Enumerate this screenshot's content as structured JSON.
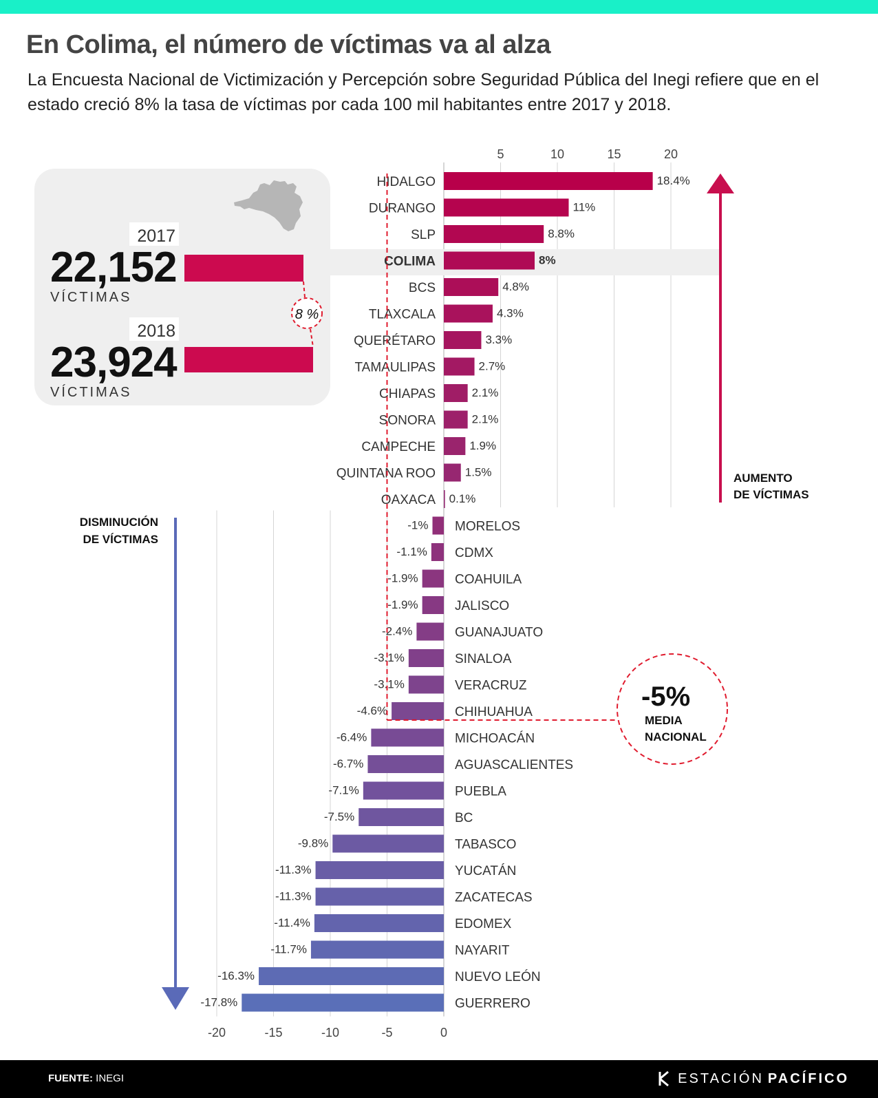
{
  "header": {
    "title": "En Colima, el número de víctimas va al alza",
    "subtitle": "La Encuesta Nacional de Victimización y Percepción sobre Seguridad Pública del Inegi refiere que en el estado creció 8% la tasa de víctimas por cada 100 mil habitantes entre 2017 y 2018."
  },
  "colima_card": {
    "year_2017": "2017",
    "value_2017": "22,152",
    "unit_2017": "VÍCTIMAS",
    "year_2018": "2018",
    "value_2018": "23,924",
    "unit_2018": "VÍCTIMAS",
    "growth_label": "8 %"
  },
  "chart_data": {
    "type": "bar",
    "orientation": "horizontal",
    "highlight": "COLIMA",
    "categories": [
      "HIDALGO",
      "DURANGO",
      "SLP",
      "COLIMA",
      "BCS",
      "TLAXCALA",
      "QUERÉTARO",
      "TAMAULIPAS",
      "CHIAPAS",
      "SONORA",
      "CAMPECHE",
      "QUINTANA ROO",
      "OAXACA",
      "MORELOS",
      "CDMX",
      "COAHUILA",
      "JALISCO",
      "GUANAJUATO",
      "SINALOA",
      "VERACRUZ",
      "CHIHUAHUA",
      "MICHOACÁN",
      "AGUASCALIENTES",
      "PUEBLA",
      "BC",
      "TABASCO",
      "YUCATÁN",
      "ZACATECAS",
      "EDOMEX",
      "NAYARIT",
      "NUEVO LEÓN",
      "GUERRERO"
    ],
    "values": [
      18.4,
      11,
      8.8,
      8,
      4.8,
      4.3,
      3.3,
      2.7,
      2.1,
      2.1,
      1.9,
      1.5,
      0.1,
      -1,
      -1.1,
      -1.9,
      -1.9,
      -2.4,
      -3.1,
      -3.1,
      -4.6,
      -6.4,
      -6.7,
      -7.1,
      -7.5,
      -9.8,
      -11.3,
      -11.3,
      -11.4,
      -11.7,
      -16.3,
      -17.8
    ],
    "value_labels": [
      "18.4%",
      "11%",
      "8.8%",
      "8%",
      "4.8%",
      "4.3%",
      "3.3%",
      "2.7%",
      "2.1%",
      "2.1%",
      "1.9%",
      "1.5%",
      "0.1%",
      "-1%",
      "-1.1%",
      "-1.9%",
      "-1.9%",
      "-2.4%",
      "-3.1%",
      "-3.1%",
      "-4.6%",
      "-6.4%",
      "-6.7%",
      "-7.1%",
      "-7.5%",
      "-9.8%",
      "-11.3%",
      "-11.3%",
      "-11.4%",
      "-11.7%",
      "-16.3%",
      "-17.8%"
    ],
    "top_axis_ticks": [
      "5",
      "10",
      "15",
      "20"
    ],
    "bottom_axis_ticks": [
      "-20",
      "-15",
      "-10",
      "-5",
      "0"
    ],
    "xlim": [
      -20,
      20
    ],
    "reference_line": {
      "value": -5,
      "label_value": "-5%",
      "label_text": [
        "MEDIA",
        "NACIONAL"
      ]
    },
    "increase_label": [
      "AUMENTO",
      "DE VÍCTIMAS"
    ],
    "decrease_label": [
      "DISMINUCIÓN",
      "DE VÍCTIMAS"
    ],
    "grid": true,
    "colors": {
      "top": "#b8004a",
      "bottom": "#5a6fb8",
      "reference": "#e01b2e",
      "increase_arrow": "#c80f4e",
      "decrease_arrow": "#5a6ab8"
    }
  },
  "footer": {
    "source_label": "FUENTE:",
    "source_value": "INEGI",
    "brand_light": "ESTACIÓN",
    "brand_bold": "PACÍFICO"
  }
}
